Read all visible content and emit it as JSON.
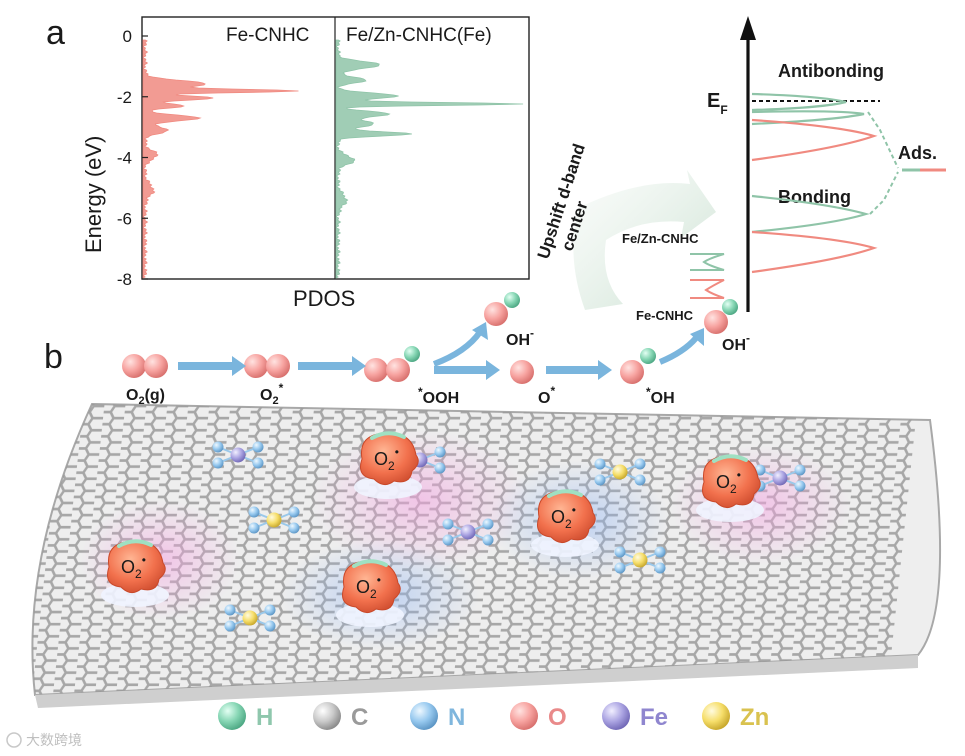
{
  "panel_a": {
    "label": "a",
    "pdos": {
      "left_series": "Fe-CNHC",
      "right_series": "Fe/Zn-CNHC(Fe)",
      "xlabel": "PDOS",
      "ylabel": "Energy (eV)",
      "yticks": [
        "0",
        "-2",
        "-4",
        "-6",
        "-8"
      ],
      "colors": {
        "fe_cnhc": "#f08a80",
        "fezn_cnhc": "#8fc4a8"
      }
    },
    "arrow_text": [
      "Upshift d-band",
      "center"
    ],
    "mini_labels": {
      "top": "Fe/Zn-CNHC",
      "bottom": "Fe-CNHC"
    },
    "band_diagram": {
      "ef_main": "E",
      "ef_sub": "F",
      "antibonding": "Antibonding",
      "bonding": "Bonding",
      "ads": "Ads."
    }
  },
  "panel_b": {
    "label": "b",
    "steps": [
      {
        "main": "O",
        "sub": "2",
        "rest": "(g)"
      },
      {
        "main": "O",
        "sub": "2",
        "sup": "*"
      },
      {
        "pre": "*",
        "main": "OOH"
      },
      {
        "main": "O",
        "sup": "*"
      },
      {
        "pre": "*",
        "main": "OH"
      }
    ],
    "oh_release": {
      "main": "OH",
      "sup": "-"
    },
    "o2_radical": {
      "main": "O",
      "sub": "2",
      "sup": "•"
    }
  },
  "legend": [
    {
      "symbol": "H",
      "color": "#7fd1b0",
      "text_color": "#8fc7ad"
    },
    {
      "symbol": "C",
      "color": "#bdbdbd",
      "text_color": "#9a9a9a"
    },
    {
      "symbol": "N",
      "color": "#8fc4ec",
      "text_color": "#7fb6dd"
    },
    {
      "symbol": "O",
      "color": "#f4a0a0",
      "text_color": "#e98a8a"
    },
    {
      "symbol": "Fe",
      "color": "#a9a3e0",
      "text_color": "#8f86cf"
    },
    {
      "symbol": "Zn",
      "color": "#f7df6c",
      "text_color": "#d9c24f"
    }
  ],
  "watermark": "大数跨境"
}
